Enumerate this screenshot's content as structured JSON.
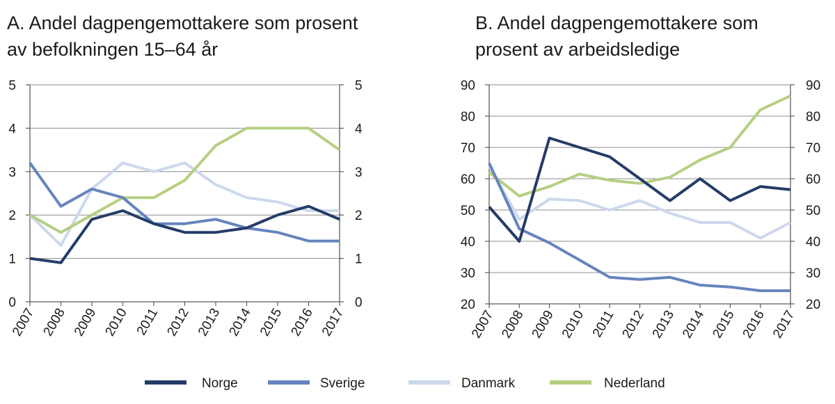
{
  "legend": [
    {
      "name": "Norge",
      "color": "#243c68"
    },
    {
      "name": "Sverige",
      "color": "#6584bf"
    },
    {
      "name": "Danmark",
      "color": "#ccd8ec"
    },
    {
      "name": "Nederland",
      "color": "#b5cf80"
    }
  ],
  "chart_data": [
    {
      "type": "line",
      "title_lines": [
        "A. Andel dagpengemottakere som prosent",
        "av befolkningen 15–64 år"
      ],
      "x": [
        "2007",
        "2008",
        "2009",
        "2010",
        "2011",
        "2012",
        "2013",
        "2014",
        "2015",
        "2016",
        "2017"
      ],
      "ylim": [
        0,
        5
      ],
      "yticks": [
        "0",
        "1",
        "2",
        "3",
        "4",
        "5"
      ],
      "grid": true,
      "series": [
        {
          "name": "Norge",
          "color": "#243c68",
          "values": [
            1.0,
            0.9,
            1.9,
            2.1,
            1.8,
            1.6,
            1.6,
            1.7,
            2.0,
            2.2,
            1.9
          ]
        },
        {
          "name": "Sverige",
          "color": "#6584bf",
          "values": [
            3.2,
            2.2,
            2.6,
            2.4,
            1.8,
            1.8,
            1.9,
            1.7,
            1.6,
            1.4,
            1.4
          ]
        },
        {
          "name": "Danmark",
          "color": "#ccd8ec",
          "values": [
            2.0,
            1.3,
            2.6,
            3.2,
            3.0,
            3.2,
            2.7,
            2.4,
            2.3,
            2.1,
            2.1
          ]
        },
        {
          "name": "Nederland",
          "color": "#b5cf80",
          "values": [
            2.0,
            1.6,
            2.0,
            2.4,
            2.4,
            2.8,
            3.6,
            4.0,
            4.0,
            4.0,
            3.5
          ]
        }
      ]
    },
    {
      "type": "line",
      "title_lines": [
        "B. Andel dagpengemottakere som",
        "prosent av arbeidsledige"
      ],
      "x": [
        "2007",
        "2008",
        "2009",
        "2010",
        "2011",
        "2012",
        "2013",
        "2014",
        "2015",
        "2016",
        "2017"
      ],
      "ylim": [
        20,
        90
      ],
      "yticks": [
        "20",
        "30",
        "40",
        "50",
        "60",
        "70",
        "80",
        "90"
      ],
      "grid": true,
      "series": [
        {
          "name": "Norge",
          "color": "#243c68",
          "values": [
            51,
            40,
            73,
            70,
            67,
            60,
            53,
            60,
            53,
            57.5,
            56.5
          ]
        },
        {
          "name": "Sverige",
          "color": "#6584bf",
          "values": [
            65,
            44,
            39.5,
            34,
            28.5,
            27.8,
            28.5,
            26,
            25.4,
            24.2,
            24.2
          ]
        },
        {
          "name": "Danmark",
          "color": "#ccd8ec",
          "values": [
            64,
            47,
            53.5,
            53,
            50,
            53,
            49,
            46,
            46,
            41,
            46
          ]
        },
        {
          "name": "Nederland",
          "color": "#b5cf80",
          "values": [
            62,
            54.5,
            57.5,
            61.5,
            59.5,
            58.5,
            60.5,
            66,
            70,
            82,
            86.5
          ]
        }
      ]
    }
  ]
}
